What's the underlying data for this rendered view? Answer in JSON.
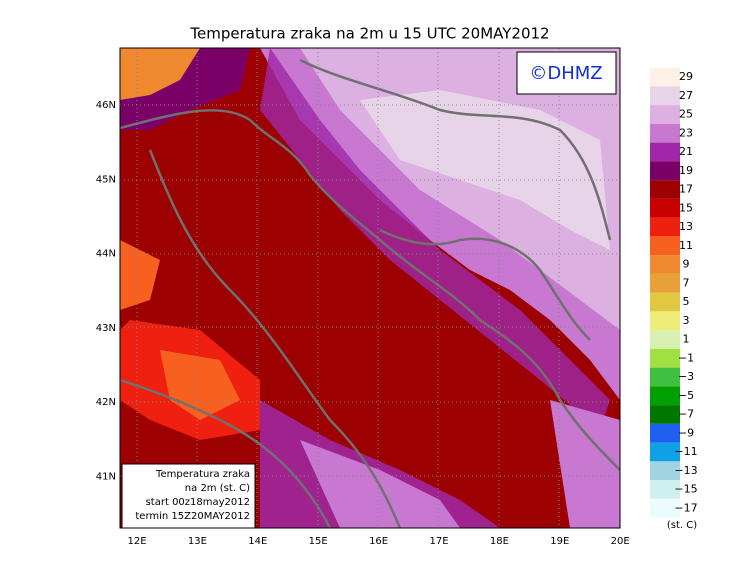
{
  "title": "Temperatura zraka na 2m u 15 UTC 20MAY2012",
  "copyright": "©DHMZ",
  "lat_labels": [
    "46N",
    "45N",
    "44N",
    "43N",
    "42N",
    "41N"
  ],
  "lon_labels": [
    "12E",
    "13E",
    "14E",
    "15E",
    "16E",
    "17E",
    "18E",
    "19E",
    "20E"
  ],
  "info_box": [
    "Temperatura zraka",
    "na 2m (st. C)",
    "start 00z18may2012",
    "termin 15Z20MAY2012"
  ],
  "legend": {
    "units": "(st. C)",
    "items": [
      {
        "label": "29",
        "color": "#fdf0e4"
      },
      {
        "label": "27",
        "color": "#e8d4e8"
      },
      {
        "label": "25",
        "color": "#dcb0e0"
      },
      {
        "label": "23",
        "color": "#c878d0"
      },
      {
        "label": "21",
        "color": "#a028a8"
      },
      {
        "label": "19",
        "color": "#7a0068"
      },
      {
        "label": "17",
        "color": "#9c0000"
      },
      {
        "label": "15",
        "color": "#c80000"
      },
      {
        "label": "13",
        "color": "#f02010"
      },
      {
        "label": "11",
        "color": "#f86020"
      },
      {
        "label": "9",
        "color": "#f08830"
      },
      {
        "label": "7",
        "color": "#e8a038"
      },
      {
        "label": "5",
        "color": "#e0c840"
      },
      {
        "label": "3",
        "color": "#f0ec78"
      },
      {
        "label": "1",
        "color": "#d8f0b0"
      },
      {
        "label": "−1",
        "color": "#a0e040"
      },
      {
        "label": "−3",
        "color": "#40c040"
      },
      {
        "label": "−5",
        "color": "#00a000"
      },
      {
        "label": "−7",
        "color": "#007800"
      },
      {
        "label": "−9",
        "color": "#2060f0"
      },
      {
        "label": "−11",
        "color": "#10a0e8"
      },
      {
        "label": "−13",
        "color": "#a0d4e0"
      },
      {
        "label": "−15",
        "color": "#d0f0f0"
      },
      {
        "label": "−17",
        "color": "#ecfcfc"
      }
    ]
  }
}
